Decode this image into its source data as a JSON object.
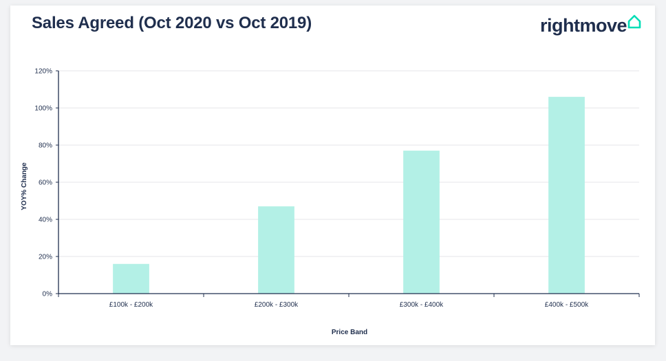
{
  "header": {
    "title": "Sales Agreed (Oct 2020 vs Oct 2019)",
    "logo_text": "rightmove",
    "logo_icon": "house-outline-icon"
  },
  "colors": {
    "bar": "#b3f0e6",
    "text": "#1f2e4d",
    "axis": "#1f2e4d",
    "grid": "#e4e6ea",
    "logo_accent": "#00deb6"
  },
  "chart_data": {
    "type": "bar",
    "categories": [
      "£100k - £200k",
      "£200k - £300k",
      "£300k - £400k",
      "£400k - £500k"
    ],
    "values": [
      16,
      47,
      77,
      106
    ],
    "title": "Sales Agreed (Oct 2020 vs Oct 2019)",
    "xlabel": "Price Band",
    "ylabel": "YOY% Change",
    "ylim": [
      0,
      120
    ],
    "yticks": [
      0,
      20,
      40,
      60,
      80,
      100,
      120
    ],
    "ytick_suffix": "%",
    "grid": true,
    "legend": "none"
  }
}
